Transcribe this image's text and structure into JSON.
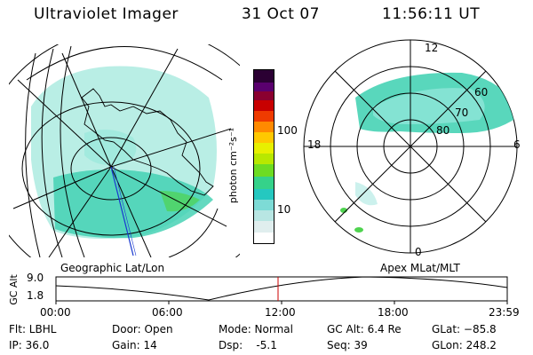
{
  "header": {
    "title": "Ultraviolet Imager",
    "date": "31 Oct 07",
    "time": "11:56:11 UT"
  },
  "left_panel": {
    "caption": "Geographic Lat/Lon"
  },
  "right_panel": {
    "caption": "Apex MLat/MLT",
    "mlt_labels": {
      "top": "12",
      "bottom": "0",
      "left": "18",
      "right": "6"
    },
    "lat_labels": [
      "60",
      "70",
      "80"
    ]
  },
  "colorbar": {
    "unit_label": "photon cm⁻²s⁻¹",
    "ticks": [
      "100",
      "10"
    ]
  },
  "alt_plot": {
    "ylabel": "GC Alt",
    "ymax": "9.0",
    "ymin": "1.8",
    "xticks": [
      "00:00",
      "06:00",
      "12:00",
      "18:00",
      "23:59"
    ],
    "marker_color": "#cc0000"
  },
  "status": {
    "filter": "Flt: LBHL",
    "ip": "IP: 36.0",
    "door": "Door: Open",
    "gain": "Gain: 14",
    "mode": "Mode: Normal",
    "dsp": "Dsp:    -5.1",
    "gc_alt": "GC Alt: 6.4 Re",
    "seq": "Seq: 39",
    "glat": "GLat: −85.8",
    "glon": "GLon: 248.2"
  }
}
